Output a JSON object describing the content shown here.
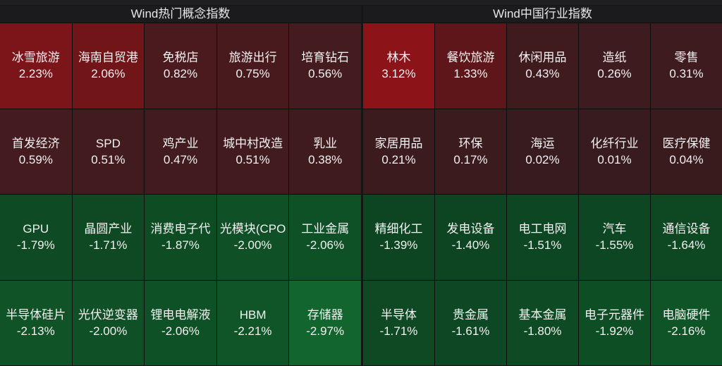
{
  "panels": [
    {
      "title": "Wind热门概念指数",
      "tiles": [
        {
          "name": "冰雪旅游",
          "change": "2.23%",
          "color": "#7b1519"
        },
        {
          "name": "海南自贸港",
          "change": "2.06%",
          "color": "#711519"
        },
        {
          "name": "免税店",
          "change": "0.82%",
          "color": "#4b1a1e"
        },
        {
          "name": "旅游出行",
          "change": "0.75%",
          "color": "#481a1e"
        },
        {
          "name": "培育钻石",
          "change": "0.56%",
          "color": "#441b1e"
        },
        {
          "name": "首发经济",
          "change": "0.59%",
          "color": "#441b1e"
        },
        {
          "name": "SPD",
          "change": "0.51%",
          "color": "#421b1e"
        },
        {
          "name": "鸡产业",
          "change": "0.47%",
          "color": "#411b1e"
        },
        {
          "name": "城中村改造",
          "change": "0.51%",
          "color": "#421b1e"
        },
        {
          "name": "乳业",
          "change": "0.38%",
          "color": "#3f1b1e"
        },
        {
          "name": "GPU",
          "change": "-1.79%",
          "color": "#0e4a23"
        },
        {
          "name": "晶圆产业",
          "change": "-1.71%",
          "color": "#0e4923"
        },
        {
          "name": "消费电子代",
          "change": "-1.87%",
          "color": "#0e4c24"
        },
        {
          "name": "光模块(CPO",
          "change": "-2.00%",
          "color": "#0f5026"
        },
        {
          "name": "工业金属",
          "change": "-2.06%",
          "color": "#0f5126"
        },
        {
          "name": "半导体硅片",
          "change": "-2.13%",
          "color": "#0f5326"
        },
        {
          "name": "光伏逆变器",
          "change": "-2.00%",
          "color": "#0f5026"
        },
        {
          "name": "锂电电解液",
          "change": "-2.06%",
          "color": "#0f5126"
        },
        {
          "name": "HBM",
          "change": "-2.21%",
          "color": "#0f5527"
        },
        {
          "name": "存储器",
          "change": "-2.97%",
          "color": "#11652d"
        }
      ]
    },
    {
      "title": "Wind中国行业指数",
      "tiles": [
        {
          "name": "林木",
          "change": "3.12%",
          "color": "#8c1318"
        },
        {
          "name": "餐饮旅游",
          "change": "1.33%",
          "color": "#5e161a"
        },
        {
          "name": "休闲用品",
          "change": "0.43%",
          "color": "#401b1e"
        },
        {
          "name": "造纸",
          "change": "0.26%",
          "color": "#3d1b1e"
        },
        {
          "name": "零售",
          "change": "0.31%",
          "color": "#3e1b1e"
        },
        {
          "name": "家居用品",
          "change": "0.21%",
          "color": "#3c1b1e"
        },
        {
          "name": "环保",
          "change": "0.17%",
          "color": "#3b1b1e"
        },
        {
          "name": "海运",
          "change": "0.02%",
          "color": "#381b1e"
        },
        {
          "name": "化纤行业",
          "change": "0.01%",
          "color": "#381b1e"
        },
        {
          "name": "医疗保健",
          "change": "0.04%",
          "color": "#391b1e"
        },
        {
          "name": "精细化工",
          "change": "-1.39%",
          "color": "#0d4421"
        },
        {
          "name": "发电设备",
          "change": "-1.40%",
          "color": "#0d4421"
        },
        {
          "name": "电工电网",
          "change": "-1.51%",
          "color": "#0d4622"
        },
        {
          "name": "汽车",
          "change": "-1.55%",
          "color": "#0d4622"
        },
        {
          "name": "通信设备",
          "change": "-1.64%",
          "color": "#0e4823"
        },
        {
          "name": "半导体",
          "change": "-1.71%",
          "color": "#0e4923"
        },
        {
          "name": "贵金属",
          "change": "-1.61%",
          "color": "#0e4723"
        },
        {
          "name": "基本金属",
          "change": "-1.80%",
          "color": "#0e4b24"
        },
        {
          "name": "电子元器件",
          "change": "-1.92%",
          "color": "#0e4e25"
        },
        {
          "name": "电脑硬件",
          "change": "-2.16%",
          "color": "#0f5426"
        }
      ]
    }
  ]
}
